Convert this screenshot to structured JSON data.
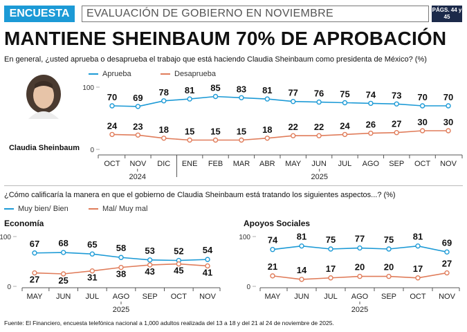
{
  "header": {
    "tag": "ENCUESTA",
    "section": "EVALUACIÓN DE GOBIERNO EN NOVIEMBRE",
    "pages": "PÁGS. 44 y 45"
  },
  "headline": "MANTIENE SHEINBAUM 70% DE APROBACIÓN",
  "q1": "En general, ¿usted aprueba o desaprueba el trabajo que está haciendo Claudia Sheinbaum como presidenta de México?  (%)",
  "q2": "¿Cómo calificaría la manera en que el gobierno de Claudia Sheinbaum está tratando los siguientes aspectos...?  (%)",
  "portrait_name": "Claudia Sheinbaum",
  "source": "Fuente: El Financiero, encuesta telefónica nacional a 1,000 adultos realizada del 13 a 18 y del 21 al 24 de noviembre de 2025.",
  "colors": {
    "blue": "#1c9ad6",
    "orange": "#e07c5a",
    "dark": "#1c2a4a"
  },
  "chart_data": [
    {
      "type": "line",
      "id": "aprobacion",
      "categories": [
        "OCT",
        "NOV",
        "DIC",
        "ENE",
        "FEB",
        "MAR",
        "ABR",
        "MAY",
        "JUN",
        "JUL",
        "AGO",
        "SEP",
        "OCT",
        "NOV"
      ],
      "year_groups": [
        {
          "label": "2024",
          "from": 0,
          "to": 2
        },
        {
          "label": "2025",
          "from": 3,
          "to": 13
        }
      ],
      "ylim": [
        0,
        100
      ],
      "yticks": [
        0,
        100
      ],
      "series": [
        {
          "name": "Aprueba",
          "color": "#1c9ad6",
          "values": [
            70,
            69,
            78,
            81,
            85,
            83,
            81,
            77,
            76,
            75,
            74,
            73,
            70,
            70
          ]
        },
        {
          "name": "Desaprueba",
          "color": "#e07c5a",
          "values": [
            24,
            23,
            18,
            15,
            15,
            15,
            18,
            22,
            22,
            24,
            26,
            27,
            30,
            30
          ]
        }
      ]
    },
    {
      "type": "line",
      "id": "economia",
      "title": "Economía",
      "categories": [
        "MAY",
        "JUN",
        "JUL",
        "AGO",
        "SEP",
        "OCT",
        "NOV"
      ],
      "year_groups": [
        {
          "label": "2025",
          "from": 0,
          "to": 6
        }
      ],
      "ylim": [
        0,
        100
      ],
      "yticks": [
        0,
        100
      ],
      "series": [
        {
          "name": "Muy bien/ Bien",
          "color": "#1c9ad6",
          "values": [
            67,
            68,
            65,
            58,
            53,
            52,
            54
          ]
        },
        {
          "name": "Mal/ Muy mal",
          "color": "#e07c5a",
          "values": [
            27,
            25,
            31,
            38,
            43,
            45,
            41
          ]
        }
      ]
    },
    {
      "type": "line",
      "id": "apoyos",
      "title": "Apoyos Sociales",
      "categories": [
        "MAY",
        "JUN",
        "JUL",
        "AGO",
        "SEP",
        "OCT",
        "NOV"
      ],
      "year_groups": [
        {
          "label": "2025",
          "from": 0,
          "to": 6
        }
      ],
      "ylim": [
        0,
        100
      ],
      "yticks": [
        0,
        100
      ],
      "series": [
        {
          "name": "Muy bien/ Bien",
          "color": "#1c9ad6",
          "values": [
            74,
            81,
            75,
            77,
            75,
            81,
            69
          ]
        },
        {
          "name": "Mal/ Muy mal",
          "color": "#e07c5a",
          "values": [
            21,
            14,
            17,
            20,
            20,
            17,
            27
          ]
        }
      ]
    }
  ]
}
